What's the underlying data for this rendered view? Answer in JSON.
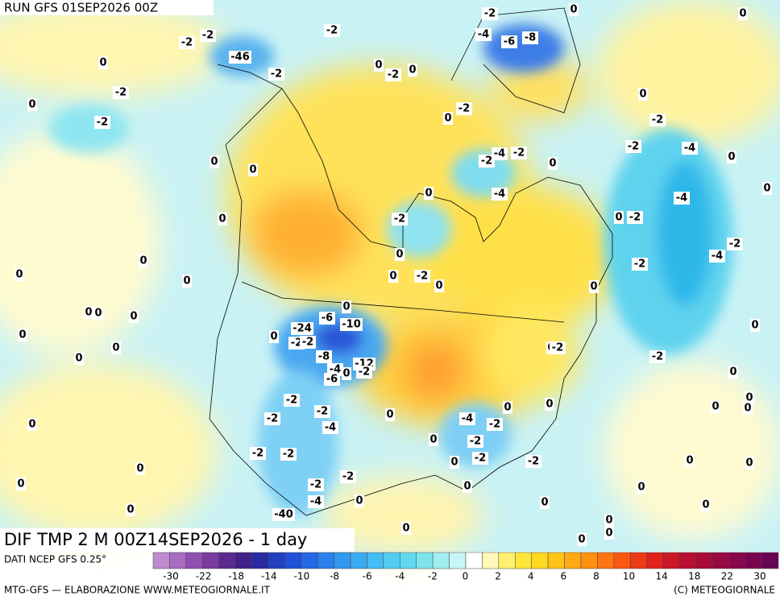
{
  "header": {
    "run": "RUN GFS 01SEP2026 00Z",
    "field": "DIF TMP 2 M 00Z14SEP2026 - 1 day"
  },
  "map": {
    "contour_labels": [
      -2,
      0,
      0,
      -2,
      -4,
      -6,
      -8,
      -2,
      -2,
      -46,
      -2,
      0,
      0,
      -2,
      0,
      -2,
      0,
      -2,
      -2,
      0,
      0,
      -2,
      -2,
      -4,
      0,
      -2,
      -4,
      -2,
      0,
      0,
      0,
      0,
      -4,
      -4,
      0,
      0,
      -2,
      0,
      -2,
      0,
      0,
      0,
      0,
      -2,
      -2,
      -4,
      0,
      -2,
      0,
      0,
      0,
      0,
      0,
      0,
      -6,
      -10,
      -24,
      -2,
      0,
      -2,
      0,
      0,
      0,
      -8,
      -12,
      0,
      -2,
      -2,
      0,
      -4,
      -2,
      0,
      -6,
      0,
      -2,
      0,
      0,
      0,
      0,
      0,
      -2,
      -4,
      -2,
      -2,
      -4,
      0,
      0,
      -2,
      0,
      -2,
      -2,
      -2,
      -2,
      0,
      0,
      0,
      0,
      -2,
      -2,
      0,
      0,
      0,
      0,
      -4,
      -40,
      0,
      0,
      0,
      0,
      0,
      0,
      0
    ]
  },
  "footer": {
    "source": "DATI NCEP GFS 0.25°",
    "credit": "MTG-GFS — ELABORAZIONE WWW.METEOGIORNALE.IT",
    "copyright": "(C) METEOGIORNALE"
  },
  "colorbar": {
    "labels": [
      -30,
      -22,
      -18,
      -14,
      -10,
      -8,
      -6,
      -4,
      -2,
      0,
      2,
      4,
      6,
      8,
      10,
      14,
      18,
      22,
      30
    ]
  }
}
